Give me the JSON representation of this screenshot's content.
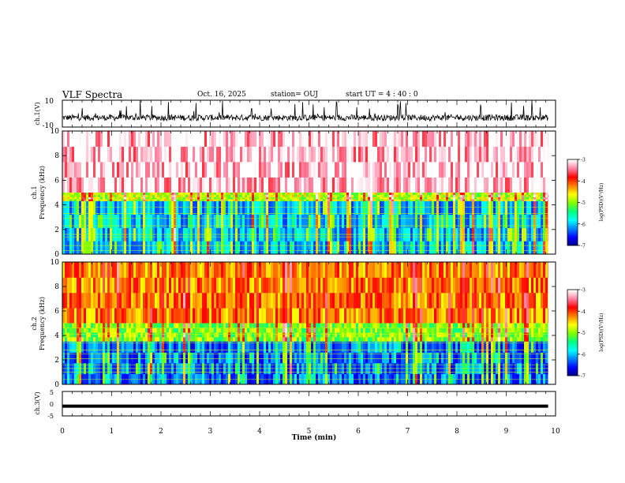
{
  "header": {
    "title": "VLF Spectra",
    "date": "Oct. 16, 2025",
    "station": "station= OUJ",
    "start": "start  UT =   4 : 40 : 0"
  },
  "chart_data": [
    {
      "type": "line",
      "id": "ch1-waveform",
      "ylabel": "ch.1(V)",
      "ylim": [
        -10,
        10
      ],
      "yticks": [
        10,
        -10
      ],
      "description_series": "noisy voltage trace centered near -3 V with spikes reaching +10 V"
    },
    {
      "type": "heatmap",
      "id": "ch1-spectrogram",
      "ylabel_line1": "ch.1",
      "ylabel_line2": "Frequency (kHz)",
      "ylim": [
        0,
        10
      ],
      "yticks": [
        "0",
        "2",
        "4",
        "6",
        "8",
        "10"
      ],
      "colorbar": {
        "label": "log(PSD)(V²/Hz)",
        "range": [
          -7,
          -3
        ],
        "ticks": [
          "-3",
          "-4",
          "-5",
          "-6",
          "-7"
        ]
      },
      "bands": [
        {
          "from_khz": 5,
          "to_khz": 10,
          "level": -3.2
        },
        {
          "from_khz": 4.3,
          "to_khz": 5,
          "level": -4.8
        },
        {
          "from_khz": 0,
          "to_khz": 4.3,
          "level": -6.0
        }
      ]
    },
    {
      "type": "heatmap",
      "id": "ch2-spectrogram",
      "ylabel_line1": "ch.2",
      "ylabel_line2": "Frequency (kHz)",
      "ylim": [
        0,
        10
      ],
      "yticks": [
        "0",
        "2",
        "4",
        "6",
        "8",
        "10"
      ],
      "colorbar": {
        "label": "log(PSD)(V²/Hz)",
        "range": [
          -7,
          -3
        ],
        "ticks": [
          "-3",
          "-4",
          "-5",
          "-6",
          "-7"
        ]
      },
      "bands": [
        {
          "from_khz": 5,
          "to_khz": 10,
          "level": -4.2
        },
        {
          "from_khz": 3.5,
          "to_khz": 5,
          "level": -5.0
        },
        {
          "from_khz": 0,
          "to_khz": 3.5,
          "level": -6.3
        }
      ]
    },
    {
      "type": "line",
      "id": "ch3-waveform",
      "ylabel": "ch.3(V)",
      "ylim": [
        -5,
        5
      ],
      "yticks": [
        "5",
        "0",
        "-5"
      ],
      "value": -1,
      "xlabel": "Time (min)",
      "xlim": [
        0,
        10
      ],
      "xticks": [
        "0",
        "1",
        "2",
        "3",
        "4",
        "5",
        "6",
        "7",
        "8",
        "9",
        "10"
      ],
      "data_end_min": 9.85
    }
  ],
  "colors": {
    "cmap": [
      "#000080",
      "#0000ff",
      "#0080ff",
      "#00ffff",
      "#00ff80",
      "#80ff00",
      "#ffff00",
      "#ff8000",
      "#ff0000",
      "#ff80a0",
      "#ffffff"
    ]
  }
}
